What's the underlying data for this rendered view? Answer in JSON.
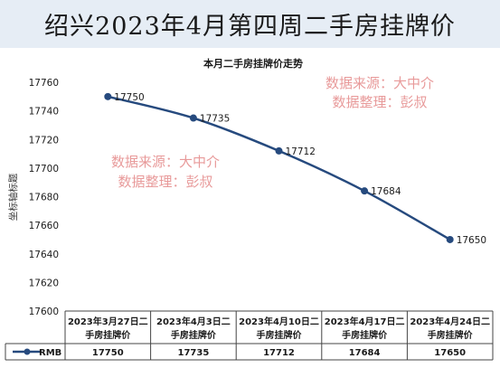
{
  "banner_title": "绍兴2023年4月第四周二手房挂牌价",
  "watermark": [
    "数据来源：大中介",
    "数据整理：彭叔"
  ],
  "chart_data": {
    "type": "line",
    "title": "本月二手房挂牌价走势",
    "ylabel": "坐标轴标题",
    "xlabel": "",
    "ylim": [
      17600,
      17760
    ],
    "y_ticks": [
      17600,
      17620,
      17640,
      17660,
      17680,
      17700,
      17720,
      17740,
      17760
    ],
    "categories": [
      [
        "2023年3月27日二",
        "手房挂牌价"
      ],
      [
        "2023年4月3日二",
        "手房挂牌价"
      ],
      [
        "2023年4月10日二",
        "手房挂牌价"
      ],
      [
        "2023年4月17日二",
        "手房挂牌价"
      ],
      [
        "2023年4月24日二",
        "手房挂牌价"
      ]
    ],
    "series": [
      {
        "name": "RMB",
        "values": [
          17750,
          17735,
          17712,
          17684,
          17650
        ]
      }
    ],
    "line_color": "#264a7e",
    "grid": false,
    "legend": "data-table"
  }
}
